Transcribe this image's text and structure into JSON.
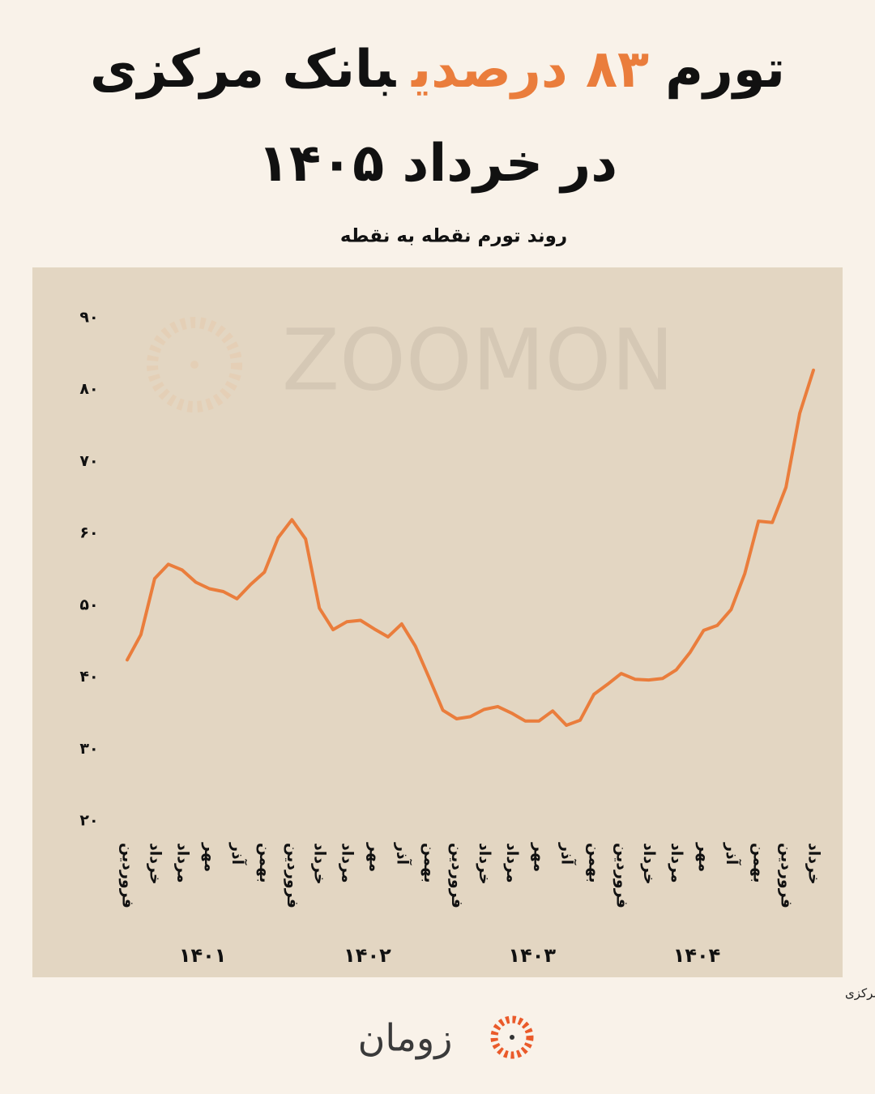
{
  "chart_data": {
    "type": "line",
    "title": [
      "تورم",
      "۸۳ درصدی",
      "بانک مرکزی",
      "در خرداد ۱۴۰۵"
    ],
    "subtitle": "روند تورم نقطه به نقطه",
    "source": "منبع داده: بانک مرکزی",
    "watermark": "ZOOMON",
    "brand": "زومان",
    "categories": [
      "فروردین",
      null,
      "خرداد",
      null,
      "مرداد",
      null,
      "مهر",
      null,
      "آذر",
      null,
      "بهمن",
      null,
      "فروردین",
      null,
      "خرداد",
      null,
      "مرداد",
      null,
      "مهر",
      null,
      "آذر",
      null,
      "بهمن",
      null,
      "فروردین",
      null,
      "خرداد",
      null,
      "مرداد",
      null,
      "مهر",
      null,
      "آذر",
      null,
      "بهمن",
      null,
      "فروردین",
      null,
      "خرداد",
      null,
      "مرداد",
      null,
      "مهر",
      null,
      "آذر",
      null,
      "بهمن",
      null,
      "فروردین",
      null,
      "خرداد"
    ],
    "year_labels": [
      "۱۴۰۱",
      "۱۴۰۲",
      "۱۴۰۳",
      "۱۴۰۴"
    ],
    "values": [
      42.4,
      45.9,
      53.7,
      55.7,
      54.9,
      53.2,
      52.3,
      51.9,
      50.9,
      52.9,
      54.6,
      59.4,
      61.9,
      59.2,
      49.6,
      46.6,
      47.7,
      47.9,
      46.7,
      45.6,
      47.4,
      44.3,
      39.9,
      35.4,
      34.2,
      34.5,
      35.5,
      35.9,
      35.0,
      33.9,
      33.9,
      35.3,
      33.3,
      34.0,
      37.6,
      39.0,
      40.5,
      39.7,
      39.6,
      39.8,
      41.0,
      43.4,
      46.5,
      47.2,
      49.4,
      54.4,
      61.7,
      61.5,
      66.4,
      76.7,
      82.7
    ],
    "color": "#ea7d3c",
    "ylim": [
      20,
      90
    ],
    "yticks": [
      {
        "value": 20,
        "label": "۲۰"
      },
      {
        "value": 30,
        "label": "۳۰"
      },
      {
        "value": 40,
        "label": "۴۰"
      },
      {
        "value": 50,
        "label": "۵۰"
      },
      {
        "value": 60,
        "label": "۶۰"
      },
      {
        "value": 70,
        "label": "۷۰"
      },
      {
        "value": 80,
        "label": "۸۰"
      },
      {
        "value": 90,
        "label": "۹۰"
      }
    ],
    "grid": false
  }
}
